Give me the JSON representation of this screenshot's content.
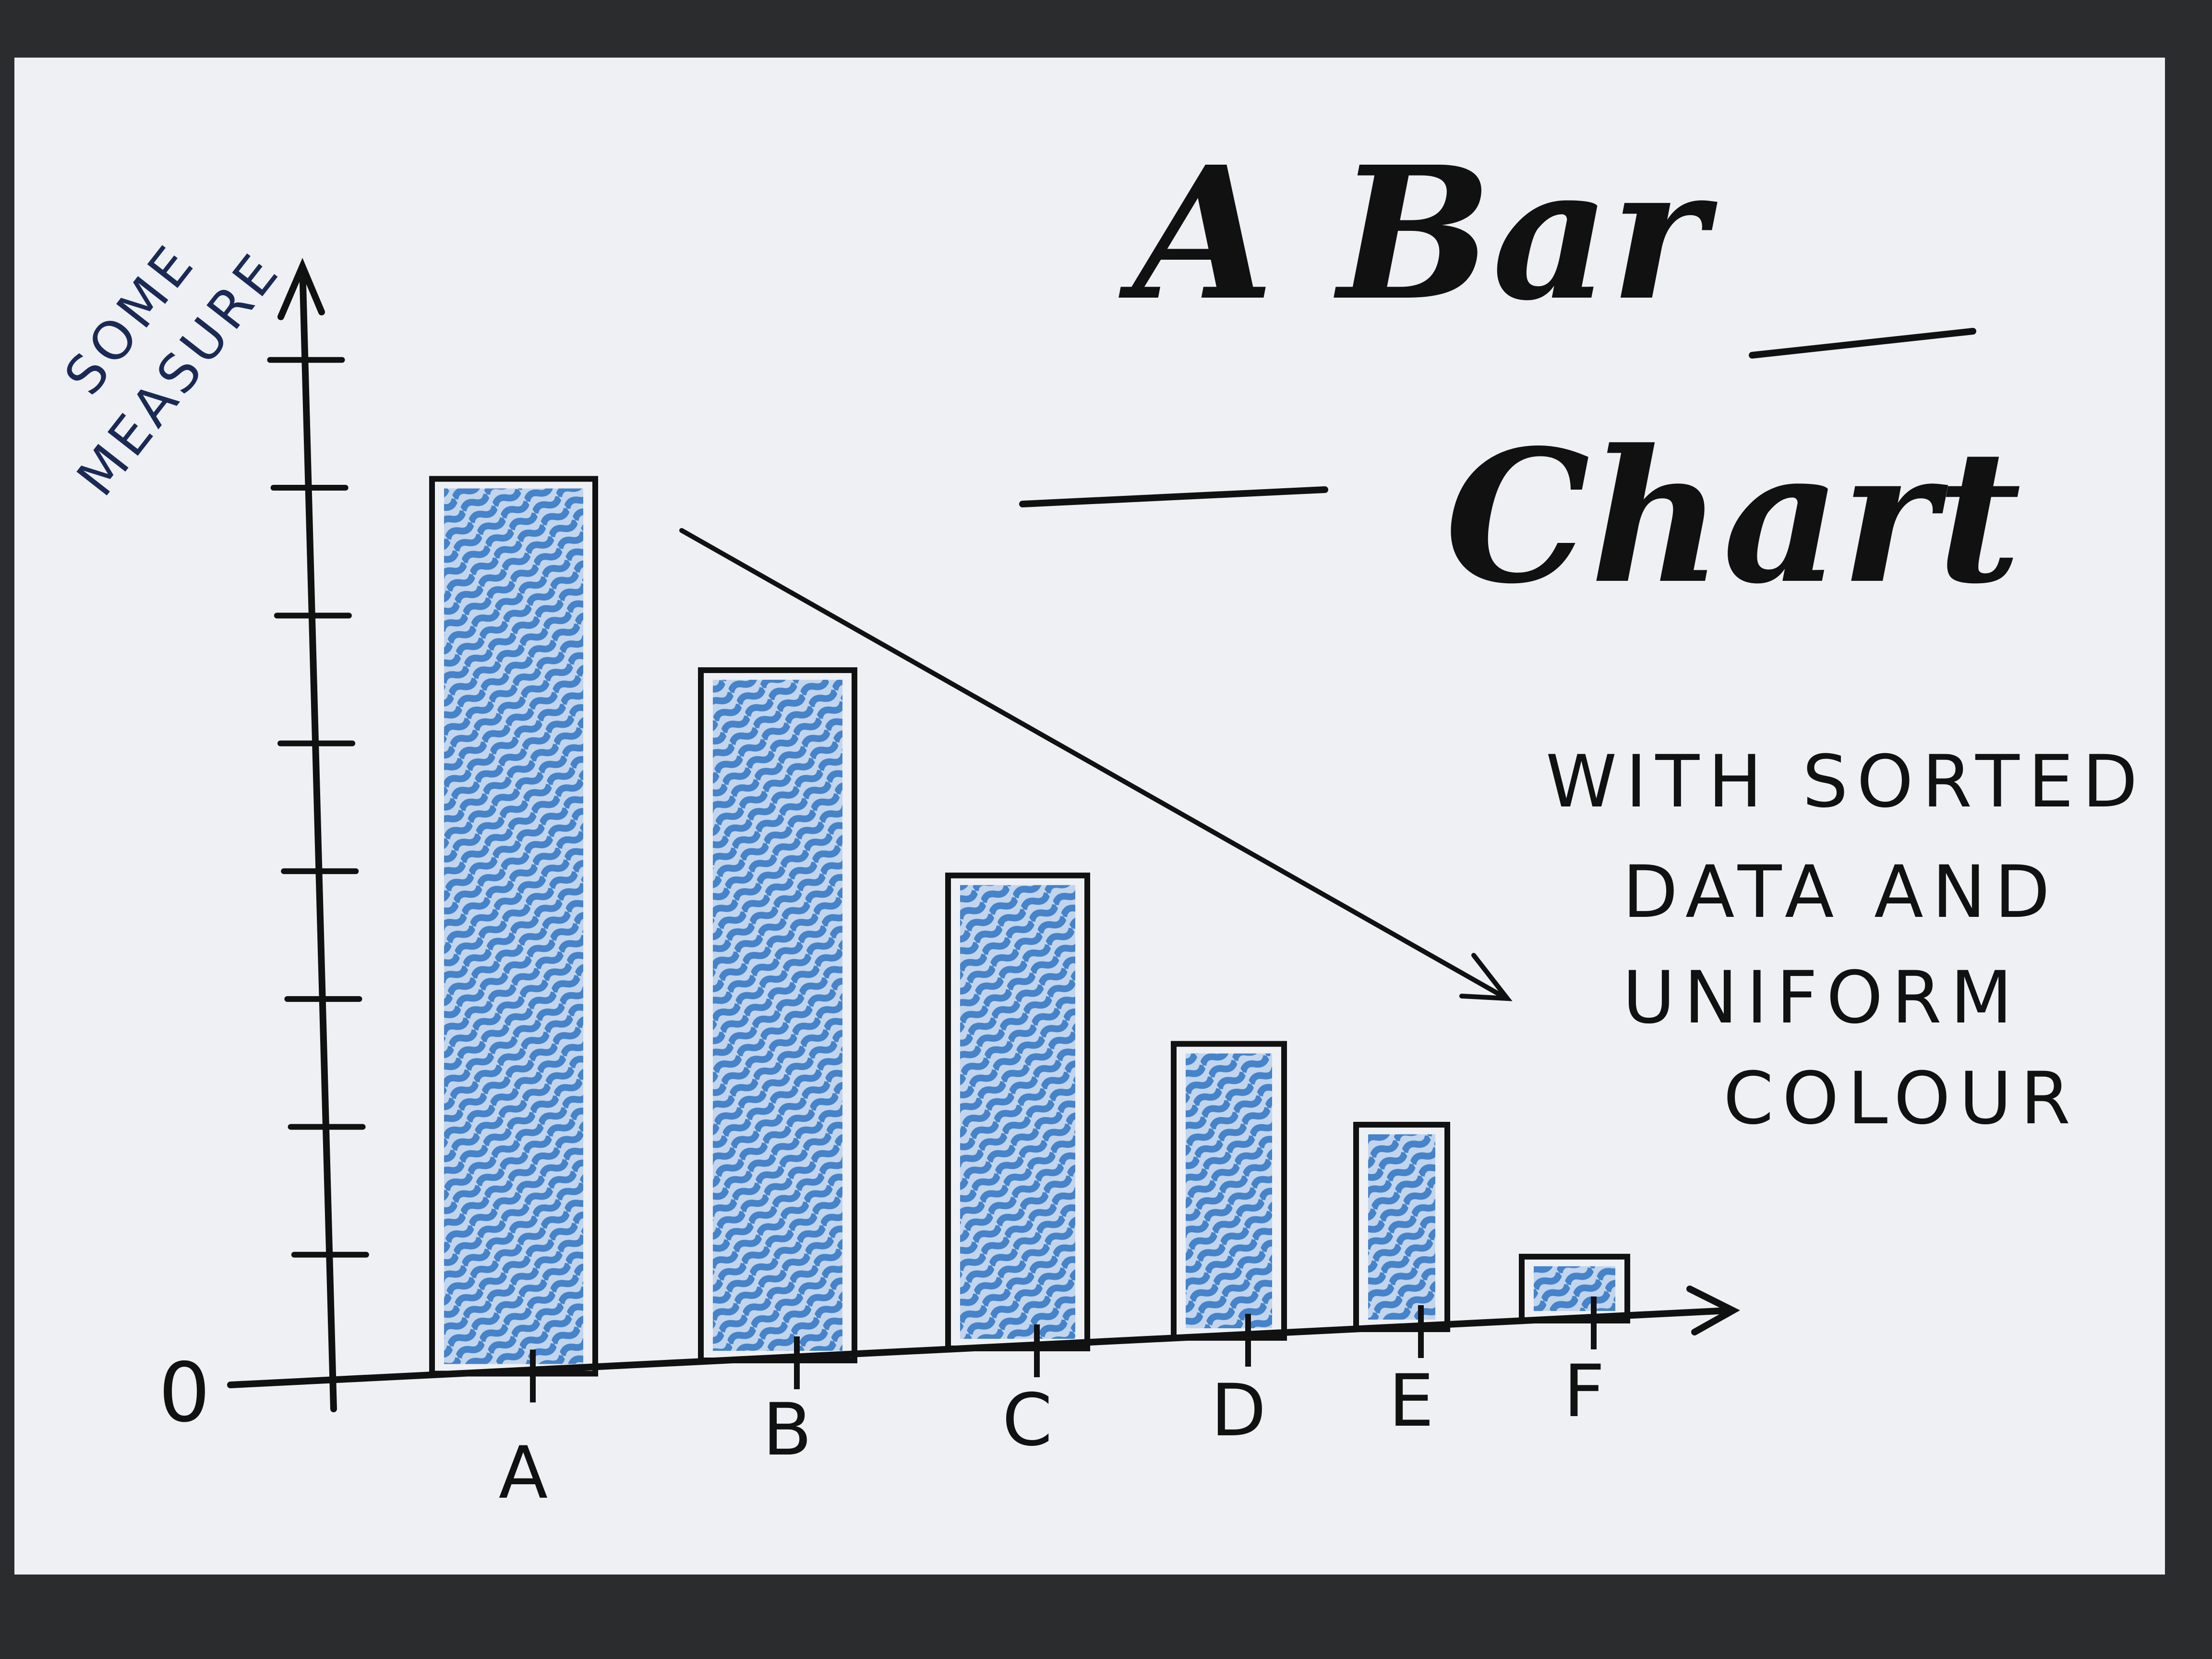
{
  "chart_data": {
    "type": "bar",
    "title_line1": "A Bar",
    "title_line2": "Chart",
    "subtitle_lines": [
      "WITH SORTED",
      "DATA AND",
      "UNIFORM",
      "COLOUR"
    ],
    "ylabel_line1": "SOME",
    "ylabel_line2": "MEASURE",
    "xlabel": "",
    "y_zero_label": "0",
    "categories": [
      "A",
      "B",
      "C",
      "D",
      "E",
      "F"
    ],
    "values": [
      7,
      5.4,
      3.7,
      2.3,
      1.6,
      0.5
    ],
    "ylim": [
      0,
      8.6
    ],
    "y_ticks": [
      1,
      2,
      3,
      4,
      5,
      6,
      7,
      8
    ],
    "grid": false,
    "legend": "none",
    "bar_fill_color": "#2f74c4",
    "ink_color": "#111111",
    "paper_color": "#eef0f4"
  }
}
